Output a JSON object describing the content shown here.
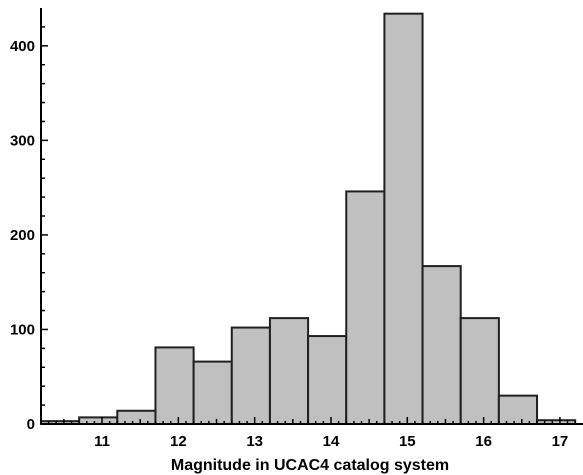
{
  "chart_data": {
    "type": "bar",
    "title": "",
    "xlabel": "Magnitude in UCAC4 catalog system",
    "ylabel": "",
    "bin_edges": [
      10.2,
      10.7,
      11.2,
      11.7,
      12.2,
      12.7,
      13.2,
      13.7,
      14.2,
      14.7,
      15.2,
      15.7,
      16.2,
      16.7,
      17.2
    ],
    "values": [
      3,
      7,
      14,
      81,
      66,
      102,
      112,
      93,
      246,
      434,
      167,
      112,
      30,
      4
    ],
    "xlim": [
      10.2,
      17.25
    ],
    "ylim": [
      0,
      440
    ],
    "xticks": [
      11,
      12,
      13,
      14,
      15,
      16,
      17
    ],
    "yticks": [
      0,
      100,
      200,
      300,
      400
    ],
    "grid": false,
    "colors": {
      "bar_fill": "#c0c0c0",
      "bar_edge": "#202020"
    }
  }
}
